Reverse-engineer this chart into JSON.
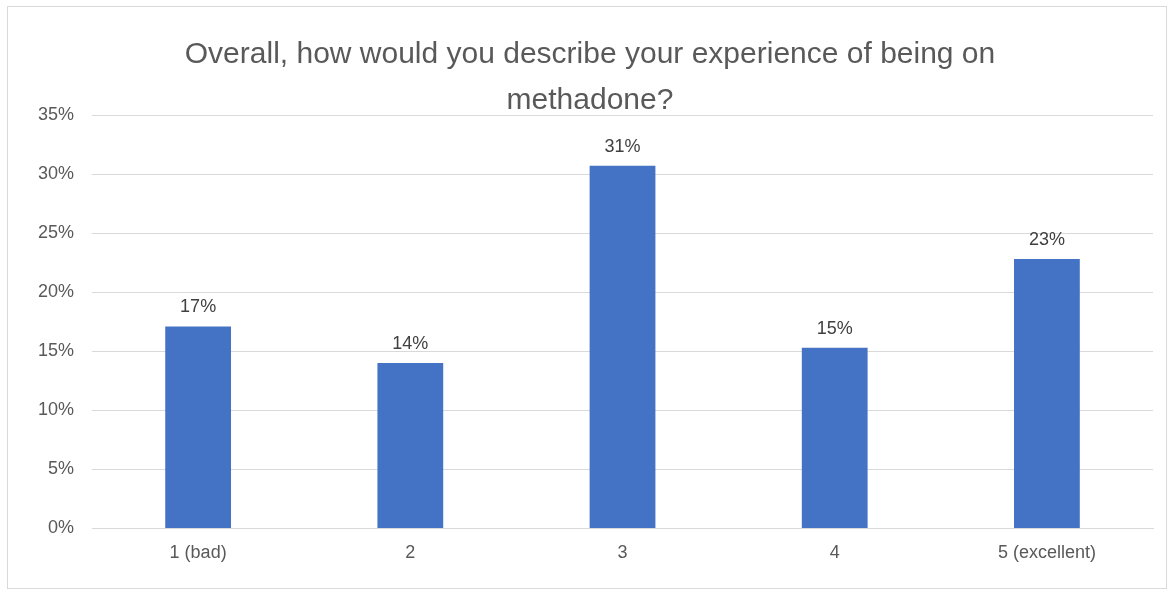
{
  "chart_data": {
    "type": "bar",
    "title": "Overall, how would you describe your experience of being on methadone?",
    "categories": [
      "1 (bad)",
      "2",
      "3",
      "4",
      "5 (excellent)"
    ],
    "values": [
      17.1,
      14.0,
      30.7,
      15.3,
      22.8
    ],
    "value_labels": [
      "17%",
      "14%",
      "31%",
      "15%",
      "23%"
    ],
    "color": "#4472c4",
    "ylim": [
      0,
      35
    ],
    "yticks": [
      {
        "value": 0,
        "label": "0%"
      },
      {
        "value": 5,
        "label": "5%"
      },
      {
        "value": 10,
        "label": "10%"
      },
      {
        "value": 15,
        "label": "15%"
      },
      {
        "value": 20,
        "label": "20%"
      },
      {
        "value": 25,
        "label": "25%"
      },
      {
        "value": 30,
        "label": "30%"
      },
      {
        "value": 35,
        "label": "35%"
      }
    ],
    "grid": "y",
    "legend": false
  }
}
